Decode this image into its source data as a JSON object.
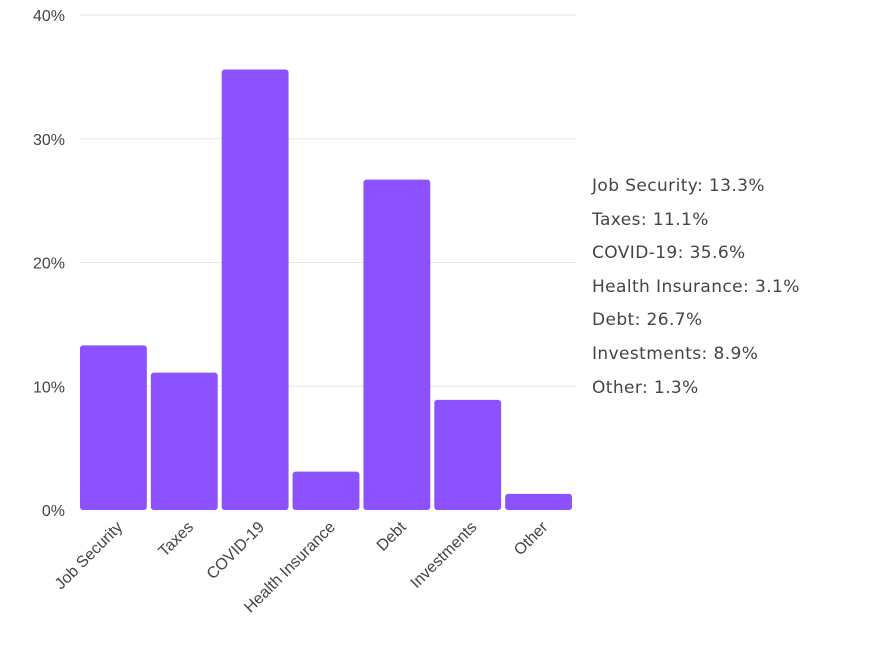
{
  "chart_data": {
    "type": "bar",
    "categories": [
      "Job Security",
      "Taxes",
      "COVID-19",
      "Health Insurance",
      "Debt",
      "Investments",
      "Other"
    ],
    "values": [
      13.3,
      11.1,
      35.6,
      3.1,
      26.7,
      8.9,
      1.3
    ],
    "ylim": [
      0,
      40
    ],
    "yticks": [
      0,
      10,
      20,
      30,
      40
    ],
    "ytick_labels": [
      "0%",
      "10%",
      "20%",
      "30%",
      "40%"
    ],
    "grid": true,
    "bar_color": "#8c52ff",
    "legend_items": [
      "Job Security: 13.3%",
      "Taxes: 11.1%",
      "COVID-19: 35.6%",
      "Health Insurance: 3.1%",
      "Debt: 26.7%",
      "Investments: 8.9%",
      "Other: 1.3%"
    ],
    "legend_position": "right"
  }
}
